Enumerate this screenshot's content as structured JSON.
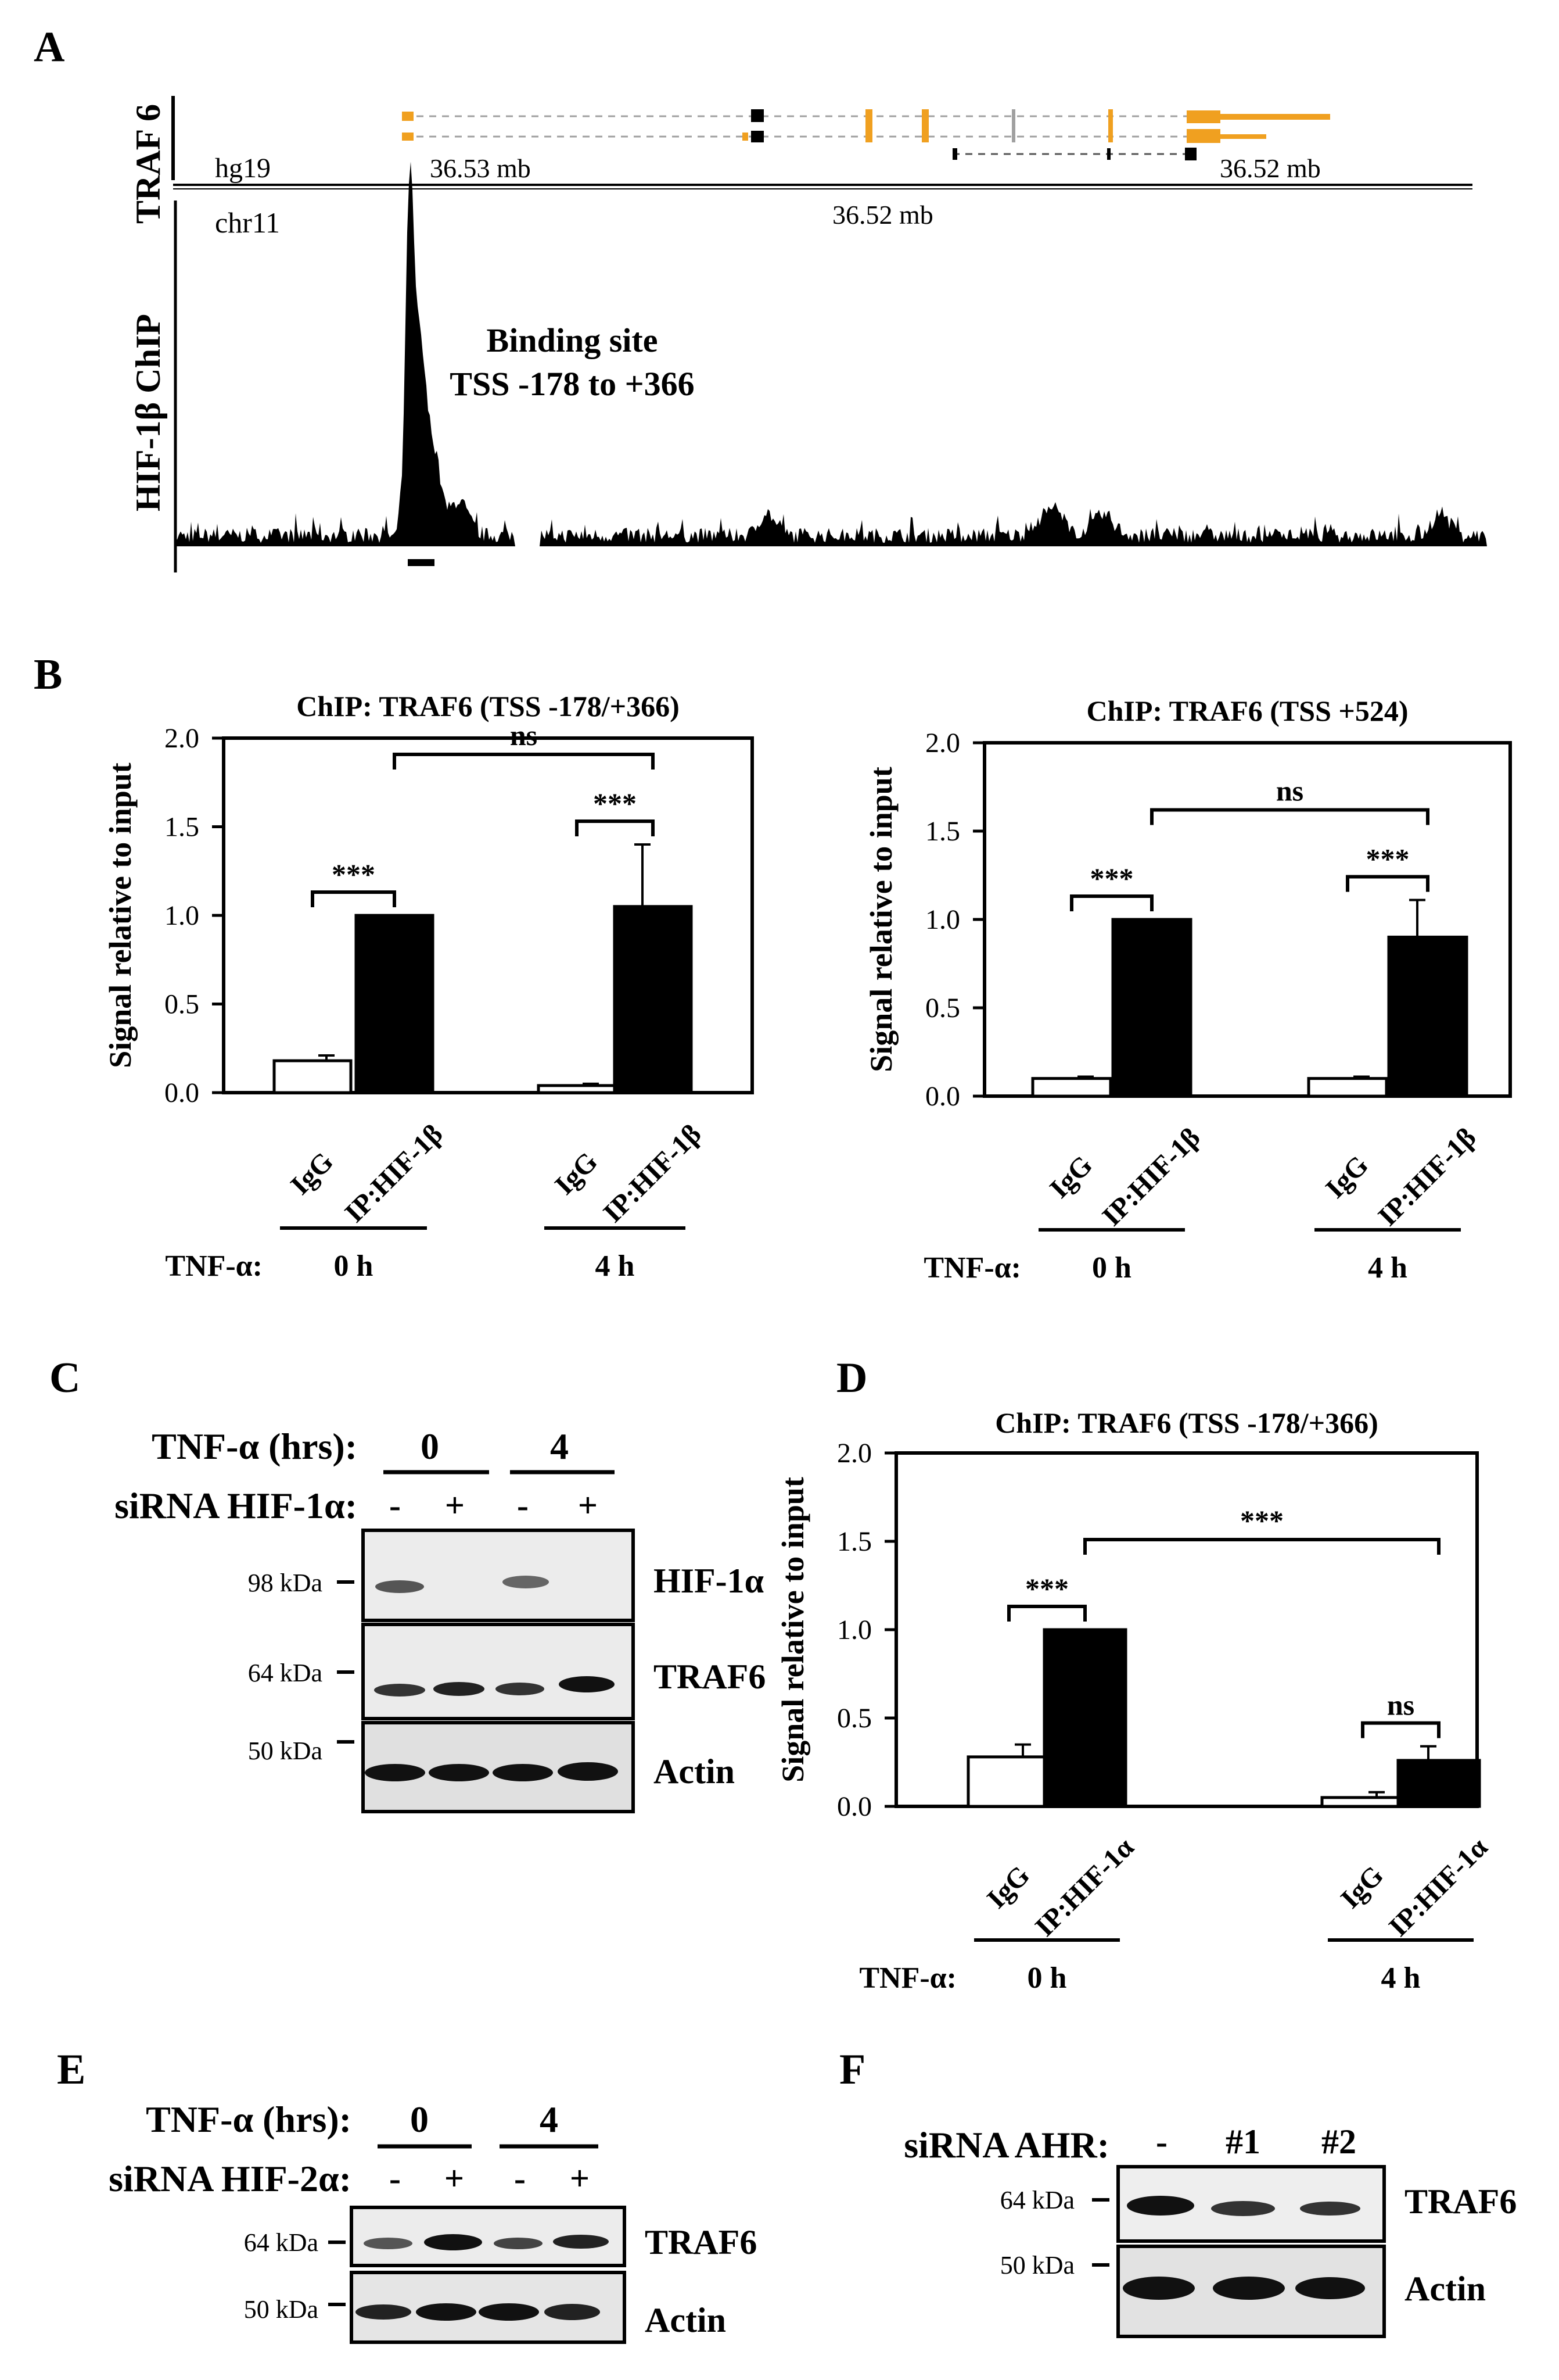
{
  "panels": {
    "A": {
      "letter": "A",
      "gene_label": "TRAF 6",
      "genome": "hg19",
      "chrom": "chr11",
      "coord_left": "36.53 mb",
      "coord_right": "36.52 mb",
      "coord_mid": "36.52 mb",
      "track_label": "HIF-1β ChIP",
      "annotation_line1": "Binding site",
      "annotation_line2": "TSS -178 to +366",
      "colors": {
        "exon": "#f0a020",
        "coding": "#000000",
        "intron": "#a0a0a0"
      }
    },
    "B": {
      "letter": "B"
    },
    "C": {
      "letter": "C",
      "treatment_label": "TNF-α (hrs):",
      "sirna_label": "siRNA HIF-1α:",
      "time_labels": [
        "0",
        "4"
      ],
      "lane_signs": [
        "-",
        "+",
        "-",
        "+"
      ],
      "markers": [
        "98 kDa",
        "64 kDa",
        "50 kDa"
      ],
      "bands": [
        "HIF-1α",
        "TRAF6",
        "Actin"
      ]
    },
    "D": {
      "letter": "D"
    },
    "E": {
      "letter": "E",
      "treatment_label": "TNF-α (hrs):",
      "sirna_label": "siRNA HIF-2α:",
      "time_labels": [
        "0",
        "4"
      ],
      "lane_signs": [
        "-",
        "+",
        "-",
        "+"
      ],
      "markers": [
        "64 kDa",
        "50 kDa"
      ],
      "bands": [
        "TRAF6",
        "Actin"
      ]
    },
    "F": {
      "letter": "F",
      "sirna_label": "siRNA AHR:",
      "lane_labels": [
        "-",
        "#1",
        "#2"
      ],
      "markers": [
        "64 kDa",
        "50 kDa"
      ],
      "bands": [
        "TRAF6",
        "Actin"
      ]
    }
  },
  "chart_data": [
    {
      "type": "bar",
      "panel": "B-left",
      "title": "ChIP: TRAF6 (TSS -178/+366)",
      "ylabel": "Signal relative to input",
      "ylim": [
        0,
        2.0
      ],
      "yticks": [
        "0.0",
        "0.5",
        "1.0",
        "1.5",
        "2.0"
      ],
      "categories": [
        "IgG",
        "IP:HIF-1β",
        "IgG",
        "IP:HIF-1β"
      ],
      "values": [
        0.18,
        1.0,
        0.04,
        1.05
      ],
      "errors": [
        0.03,
        0,
        0.01,
        0.35
      ],
      "fills": [
        "#ffffff",
        "#000000",
        "#ffffff",
        "#000000"
      ],
      "group_prefix": "TNF-α:",
      "groups": [
        "0 h",
        "4 h"
      ],
      "sig_pairs": [
        "***",
        "***"
      ],
      "sig_between": "ns"
    },
    {
      "type": "bar",
      "panel": "B-right",
      "title": "ChIP: TRAF6 (TSS +524)",
      "ylabel": "Signal relative to input",
      "ylim": [
        0,
        2.0
      ],
      "yticks": [
        "0.0",
        "0.5",
        "1.0",
        "1.5",
        "2.0"
      ],
      "categories": [
        "IgG",
        "IP:HIF-1β",
        "IgG",
        "IP:HIF-1β"
      ],
      "values": [
        0.1,
        1.0,
        0.1,
        0.9
      ],
      "errors": [
        0.01,
        0,
        0.01,
        0.21
      ],
      "fills": [
        "#ffffff",
        "#000000",
        "#ffffff",
        "#000000"
      ],
      "group_prefix": "TNF-α:",
      "groups": [
        "0 h",
        "4 h"
      ],
      "sig_pairs": [
        "***",
        "***"
      ],
      "sig_between": "ns"
    },
    {
      "type": "bar",
      "panel": "D",
      "title": "ChIP: TRAF6 (TSS -178/+366)",
      "ylabel": "Signal relative to input",
      "ylim": [
        0,
        2.0
      ],
      "yticks": [
        "0.0",
        "0.5",
        "1.0",
        "1.5",
        "2.0"
      ],
      "categories": [
        "IgG",
        "IP:HIF-1α",
        "IgG",
        "IP:HIF-1α"
      ],
      "values": [
        0.28,
        1.0,
        0.05,
        0.26
      ],
      "errors": [
        0.07,
        0,
        0.03,
        0.08
      ],
      "fills": [
        "#ffffff",
        "#000000",
        "#ffffff",
        "#000000"
      ],
      "group_prefix": "TNF-α:",
      "groups": [
        "0 h",
        "4 h"
      ],
      "sig_pairs": [
        "***",
        "ns"
      ],
      "sig_between": "***"
    }
  ]
}
